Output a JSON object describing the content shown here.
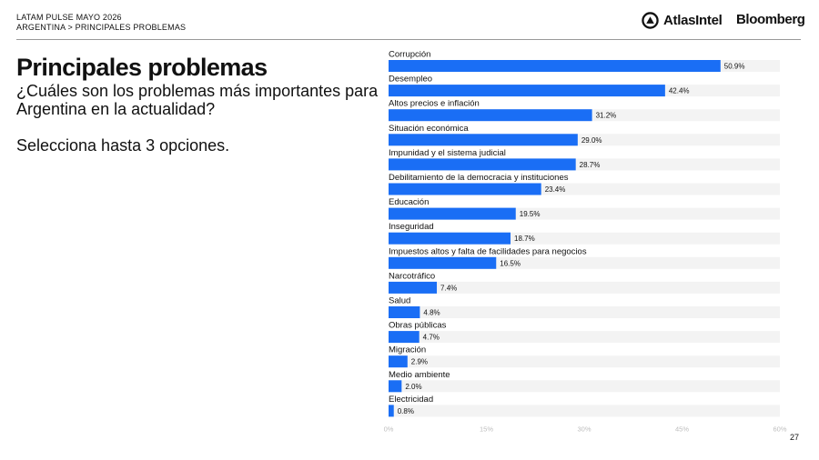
{
  "header": {
    "line1": "LATAM PULSE MAYO 2026",
    "line2": "ARGENTINA > PRINCIPALES PROBLEMAS",
    "logo_atlas": "AtlasIntel",
    "logo_bloomberg": "Bloomberg"
  },
  "slide": {
    "title": "Principales problemas",
    "question": "¿Cuáles son los problemas más importantes para Argentina en la actualidad?",
    "instruction": "Selecciona hasta 3 opciones.",
    "page_number": "27"
  },
  "colors": {
    "bar": "#1a6ef5",
    "track": "#f3f3f3",
    "text": "#111111",
    "tick": "#bdbdbd"
  },
  "chart_data": {
    "type": "bar",
    "orientation": "horizontal",
    "categories": [
      "Corrupción",
      "Desempleo",
      "Altos precios e inflación",
      "Situación económica",
      "Impunidad y el sistema judicial",
      "Debilitamiento de la democracia y instituciones",
      "Educación",
      "Inseguridad",
      "Impuestos altos y falta de facilidades para negocios",
      "Narcotráfico",
      "Salud",
      "Obras públicas",
      "Migración",
      "Medio ambiente",
      "Electricidad"
    ],
    "values": [
      50.9,
      42.4,
      31.2,
      29.0,
      28.7,
      23.4,
      19.5,
      18.7,
      16.5,
      7.4,
      4.8,
      4.7,
      2.9,
      2.0,
      0.8
    ],
    "value_labels": [
      "50.9%",
      "42.4%",
      "31.2%",
      "29.0%",
      "28.7%",
      "23.4%",
      "19.5%",
      "18.7%",
      "16.5%",
      "7.4%",
      "4.8%",
      "4.7%",
      "2.9%",
      "2.0%",
      "0.8%"
    ],
    "xlim": [
      0,
      60
    ],
    "xticks": [
      "0%",
      "15%",
      "30%",
      "45%",
      "60%"
    ],
    "xtick_values": [
      0,
      15,
      30,
      45,
      60
    ],
    "title": "",
    "xlabel": "",
    "ylabel": "",
    "grid": false,
    "legend": "none"
  }
}
